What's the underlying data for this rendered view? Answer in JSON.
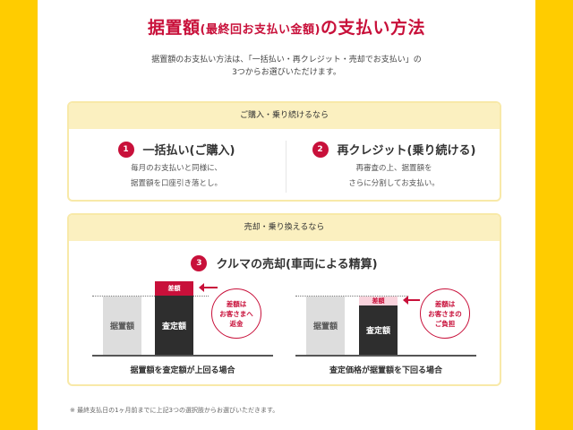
{
  "title": {
    "main": "据置額",
    "paren": "(最終回お支払い金額)",
    "tail": "の支払い方法"
  },
  "intro": [
    "据置額のお支払い方法は、「一括払い・再クレジット・売却でお支払い」の",
    "3つからお選びいただけます。"
  ],
  "colors": {
    "accent": "#C8103A",
    "side": "#FFCC00",
    "header": "#FBF0C0"
  },
  "section1": {
    "header": "ご購入・乗り続けるなら",
    "options": [
      {
        "num": "1",
        "title": "一括払い(ご購入)",
        "desc": [
          "毎月のお支払いと同様に、",
          "据置額を口座引き落とし。"
        ]
      },
      {
        "num": "2",
        "title": "再クレジット(乗り続ける)",
        "desc": [
          "再審査の上、据置額を",
          "さらに分割してお支払い。"
        ]
      }
    ]
  },
  "section2": {
    "header": "売却・乗り換えるなら",
    "option": {
      "num": "3",
      "title": "クルマの売却(車両による精算)"
    },
    "diagrams": [
      {
        "deferred": "据置額",
        "assessed": "査定額",
        "diff": "差額",
        "circle": "差額は\nお客さまへ\n返金",
        "caption": "据置額を査定額が上回る場合"
      },
      {
        "deferred": "据置額",
        "assessed": "査定額",
        "diff": "差額",
        "circle": "差額は\nお客さまの\nご負担",
        "caption": "査定価格が据置額を下回る場合"
      }
    ]
  },
  "footnote": "※ 最終支払日の1ヶ月前までに上記3つの選択肢からお選びいただきます。"
}
